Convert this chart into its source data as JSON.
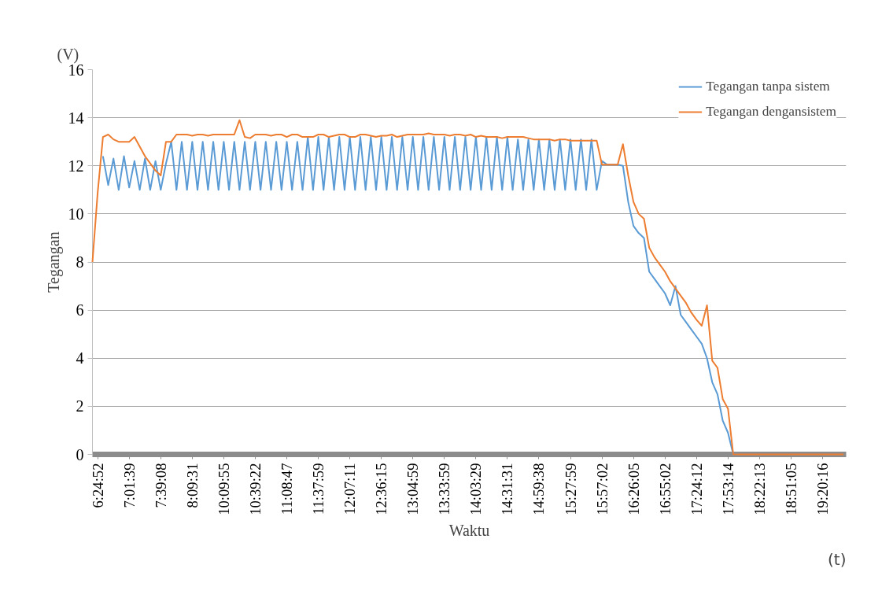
{
  "chart_data": {
    "type": "line",
    "ylabel": "Tegangan",
    "xlabel": "Waktu",
    "annotations": [
      "(V)",
      "(t)"
    ],
    "categories": [
      null,
      "6:24:52",
      null,
      null,
      null,
      null,
      null,
      "7:01:39",
      null,
      null,
      null,
      null,
      null,
      "7:39:08",
      null,
      null,
      null,
      null,
      null,
      "8:09:31",
      null,
      null,
      null,
      null,
      null,
      "10:09:55",
      null,
      null,
      null,
      null,
      null,
      "10:39:22",
      null,
      null,
      null,
      null,
      null,
      "11:08:47",
      null,
      null,
      null,
      null,
      null,
      "11:37:59",
      null,
      null,
      null,
      null,
      null,
      "12:07:11",
      null,
      null,
      null,
      null,
      null,
      "12:36:15",
      null,
      null,
      null,
      null,
      null,
      "13:04:59",
      null,
      null,
      null,
      null,
      null,
      "13:33:59",
      null,
      null,
      null,
      null,
      null,
      "14:03:29",
      null,
      null,
      null,
      null,
      null,
      "14:31:31",
      null,
      null,
      null,
      null,
      null,
      "14:59:38",
      null,
      null,
      null,
      null,
      null,
      "15:27:59",
      null,
      null,
      null,
      null,
      null,
      "15:57:02",
      null,
      null,
      null,
      null,
      null,
      "16:26:05",
      null,
      null,
      null,
      null,
      null,
      "16:55:02",
      null,
      null,
      null,
      null,
      null,
      "17:24:12",
      null,
      null,
      null,
      null,
      null,
      "17:53:14",
      null,
      null,
      null,
      null,
      null,
      "18:22:13",
      null,
      null,
      null,
      null,
      null,
      "18:51:05",
      null,
      null,
      null,
      null,
      null,
      "19:20:16",
      null,
      null,
      null,
      null
    ],
    "ylim": [
      0,
      16
    ],
    "yticks": [
      0,
      2,
      4,
      6,
      8,
      10,
      12,
      14,
      16
    ],
    "grid": "y",
    "legend": "top right",
    "line_style": "solid",
    "marker": "none",
    "series": [
      {
        "name": "Tegangan tanpa sistem",
        "color": "#5b9bd5",
        "values": [
          null,
          null,
          12.4,
          11.2,
          12.3,
          11.0,
          12.4,
          11.1,
          12.2,
          11.0,
          12.3,
          11.0,
          12.2,
          11.0,
          12.1,
          13.0,
          11.0,
          13.0,
          11.0,
          13.0,
          11.0,
          13.0,
          11.0,
          13.0,
          11.0,
          13.0,
          11.0,
          13.0,
          11.0,
          13.0,
          11.0,
          13.0,
          11.0,
          13.0,
          11.0,
          13.0,
          11.0,
          13.0,
          11.0,
          13.0,
          11.0,
          13.2,
          11.0,
          13.2,
          11.0,
          13.2,
          11.0,
          13.2,
          11.0,
          13.2,
          11.0,
          13.2,
          11.0,
          13.2,
          11.0,
          13.2,
          11.0,
          13.2,
          11.0,
          13.2,
          11.0,
          13.2,
          11.0,
          13.2,
          11.0,
          13.2,
          11.0,
          13.2,
          11.0,
          13.2,
          11.0,
          13.2,
          11.0,
          13.2,
          11.0,
          13.2,
          11.0,
          13.2,
          11.0,
          13.2,
          11.0,
          13.1,
          11.0,
          13.1,
          11.0,
          13.1,
          11.0,
          13.1,
          11.0,
          13.1,
          11.0,
          13.1,
          11.0,
          13.1,
          11.0,
          13.1,
          11.0,
          12.2,
          12.05,
          12.05,
          12.05,
          12.0,
          10.5,
          9.5,
          9.2,
          9.0,
          7.6,
          7.3,
          7.0,
          6.7,
          6.2,
          7.0,
          5.8,
          5.5,
          5.2,
          4.9,
          4.6,
          4.0,
          3.0,
          2.5,
          1.4,
          0.9,
          0,
          0,
          null,
          null,
          null,
          null,
          null,
          null,
          null,
          null,
          null,
          null,
          null,
          null,
          null,
          null,
          null,
          null,
          null,
          null,
          null,
          null
        ]
      },
      {
        "name": "Tegangan dengansistem",
        "color": "#ed7d31",
        "values": [
          8.0,
          10.9,
          13.2,
          13.3,
          13.1,
          13.0,
          13.0,
          13.0,
          13.2,
          12.8,
          12.4,
          12.1,
          11.8,
          11.6,
          13.0,
          13.0,
          13.3,
          13.3,
          13.3,
          13.25,
          13.3,
          13.3,
          13.25,
          13.3,
          13.3,
          13.3,
          13.3,
          13.3,
          13.9,
          13.2,
          13.15,
          13.3,
          13.3,
          13.3,
          13.25,
          13.3,
          13.3,
          13.2,
          13.3,
          13.3,
          13.2,
          13.2,
          13.2,
          13.3,
          13.3,
          13.2,
          13.25,
          13.3,
          13.3,
          13.2,
          13.2,
          13.3,
          13.3,
          13.25,
          13.2,
          13.25,
          13.25,
          13.3,
          13.2,
          13.25,
          13.3,
          13.3,
          13.3,
          13.3,
          13.35,
          13.3,
          13.3,
          13.3,
          13.25,
          13.3,
          13.3,
          13.25,
          13.3,
          13.2,
          13.25,
          13.2,
          13.2,
          13.2,
          13.15,
          13.2,
          13.2,
          13.2,
          13.2,
          13.15,
          13.1,
          13.1,
          13.1,
          13.1,
          13.05,
          13.1,
          13.1,
          13.05,
          13.05,
          13.05,
          13.05,
          13.05,
          13.05,
          12.05,
          12.05,
          12.05,
          12.05,
          12.9,
          11.6,
          10.5,
          10.0,
          9.8,
          8.6,
          8.2,
          7.9,
          7.6,
          7.2,
          6.9,
          6.6,
          6.3,
          5.9,
          5.6,
          5.35,
          6.2,
          3.9,
          3.6,
          2.3,
          1.9,
          0,
          0,
          0,
          0,
          0,
          0,
          0,
          0,
          0,
          0,
          0,
          0,
          0,
          0,
          0,
          0,
          0,
          0,
          0,
          0,
          0,
          0
        ]
      }
    ]
  }
}
